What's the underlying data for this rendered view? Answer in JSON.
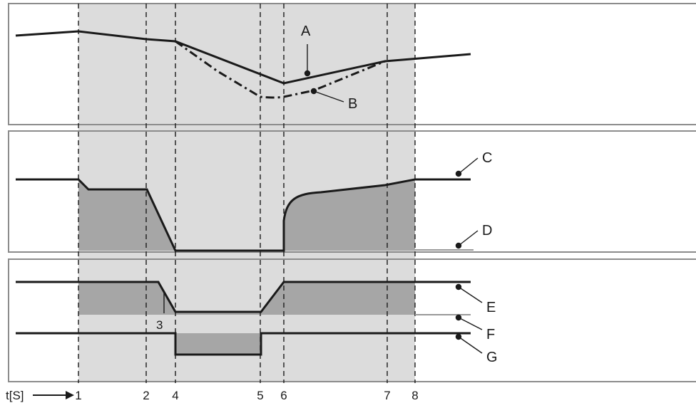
{
  "labels": {
    "A": "A",
    "B": "B",
    "C": "C",
    "D": "D",
    "E": "E",
    "F": "F",
    "G": "G",
    "marker_3": "3"
  },
  "axis": {
    "time_label": "t[S]",
    "ticks": [
      "1",
      "2",
      "4",
      "5",
      "6",
      "7",
      "8"
    ]
  },
  "colors": {
    "shade_light": "#dcdcdc",
    "shade_dark": "#a6a6a6",
    "line": "#1a1a1a",
    "frame": "#8c8c8c"
  }
}
